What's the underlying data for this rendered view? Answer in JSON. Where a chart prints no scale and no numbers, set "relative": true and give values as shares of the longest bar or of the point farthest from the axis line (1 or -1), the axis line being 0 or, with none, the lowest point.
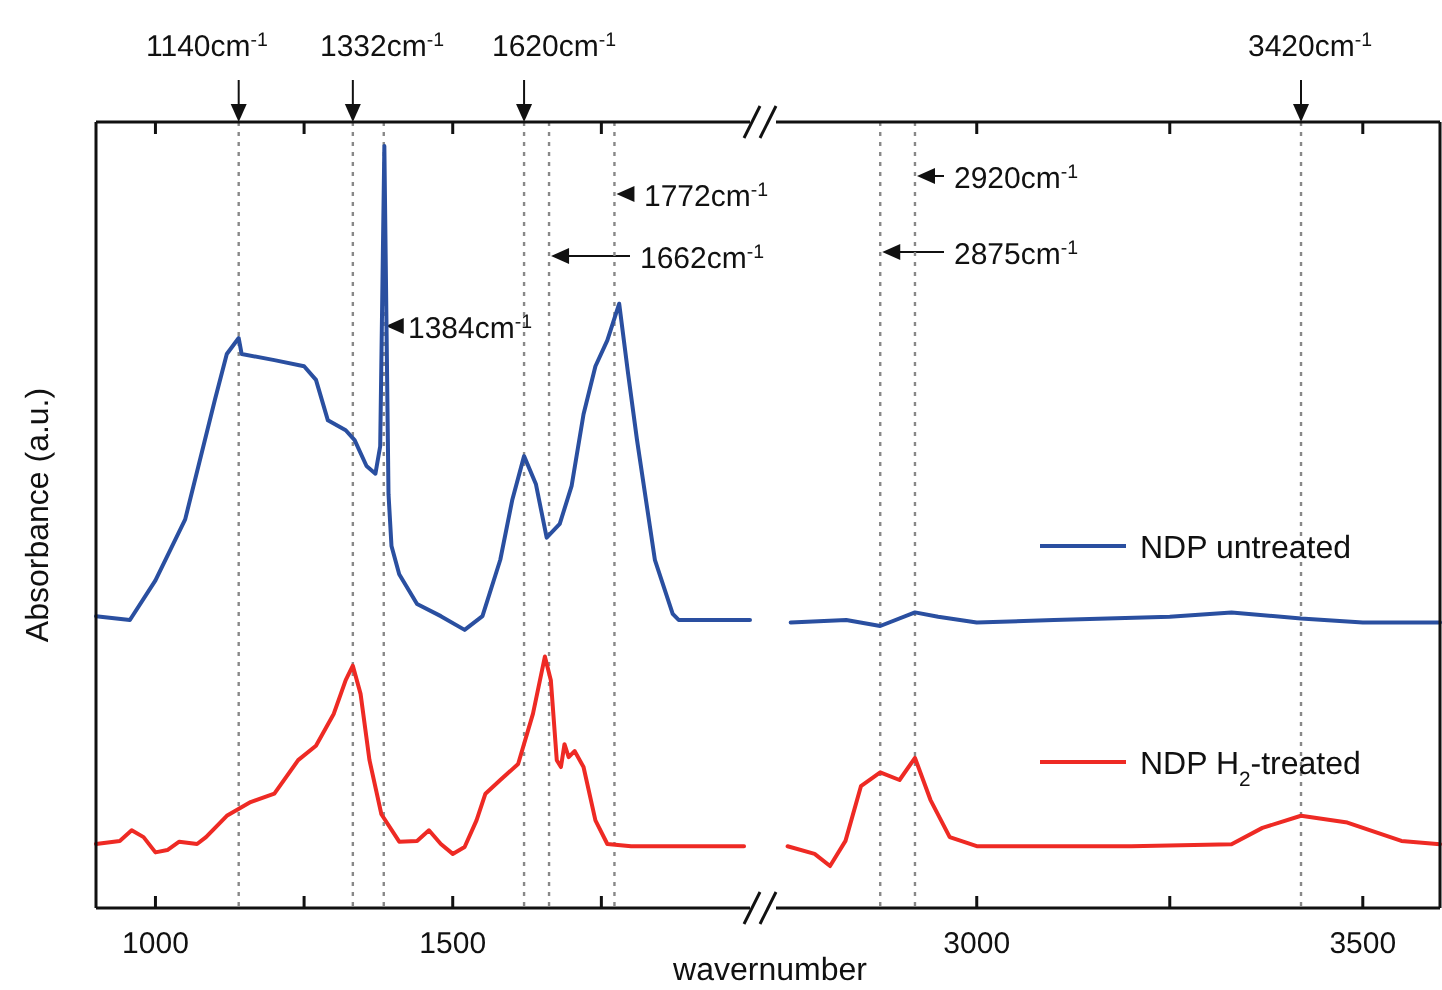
{
  "chart_data": [
    {
      "type": "line",
      "xlabel": "wavernumber",
      "ylabel": "Absorbance (a.u.)",
      "relative": true,
      "xlim": [
        900,
        2000
      ],
      "xticks": [
        1000,
        {
          "value": 1250,
          "label": null
        },
        1500,
        {
          "value": 1750,
          "label": null
        }
      ],
      "grid": false,
      "legend": false,
      "marker": "none",
      "line_style": "solid",
      "series": [
        {
          "color": "#2a4fa0",
          "x": [
            900,
            957,
            1000,
            1050,
            1100,
            1120,
            1140,
            1145,
            1200,
            1250,
            1270,
            1290,
            1320,
            1335,
            1355,
            1370,
            1378,
            1385,
            1392,
            1397,
            1410,
            1440,
            1480,
            1520,
            1550,
            1580,
            1600,
            1620,
            1640,
            1658,
            1680,
            1700,
            1720,
            1740,
            1760,
            1780,
            1795,
            1810,
            1840,
            1870,
            1880,
            2000
          ],
          "values": [
            0.383,
            0.378,
            0.43,
            0.51,
            0.667,
            0.727,
            0.748,
            0.727,
            0.719,
            0.711,
            0.693,
            0.64,
            0.627,
            0.614,
            0.58,
            0.57,
            0.606,
            1.0,
            0.543,
            0.475,
            0.438,
            0.399,
            0.383,
            0.365,
            0.383,
            0.457,
            0.535,
            0.593,
            0.556,
            0.486,
            0.504,
            0.554,
            0.648,
            0.711,
            0.745,
            0.793,
            0.701,
            0.614,
            0.457,
            0.386,
            0.378,
            0.378
          ]
        },
        {
          "color": "#ee2a24",
          "x": [
            900,
            940,
            960,
            980,
            1000,
            1020,
            1040,
            1070,
            1085,
            1120,
            1160,
            1200,
            1240,
            1270,
            1300,
            1320,
            1332,
            1345,
            1360,
            1380,
            1410,
            1440,
            1460,
            1480,
            1500,
            1520,
            1540,
            1555,
            1580,
            1610,
            1635,
            1655,
            1665,
            1675,
            1682,
            1688,
            1695,
            1705,
            1720,
            1740,
            1760,
            1800,
            1990
          ],
          "values": [
            0.084,
            0.088,
            0.102,
            0.093,
            0.073,
            0.076,
            0.087,
            0.084,
            0.093,
            0.121,
            0.139,
            0.15,
            0.194,
            0.213,
            0.255,
            0.299,
            0.318,
            0.281,
            0.194,
            0.123,
            0.087,
            0.088,
            0.102,
            0.084,
            0.071,
            0.08,
            0.115,
            0.15,
            0.168,
            0.189,
            0.255,
            0.33,
            0.299,
            0.194,
            0.185,
            0.215,
            0.198,
            0.206,
            0.185,
            0.115,
            0.084,
            0.081,
            0.081
          ]
        }
      ],
      "ref_lines": [
        {
          "axis": "x",
          "value": 1140,
          "label": "1140cm$^{-1}$",
          "line_style": "dotted",
          "color": "#888888"
        },
        {
          "axis": "x",
          "value": 1332,
          "label": "1332cm$^{-1}$",
          "line_style": "dotted",
          "color": "#888888"
        },
        {
          "axis": "x",
          "value": 1384,
          "label": "1384cm$^{-1}$",
          "line_style": "dotted",
          "color": "#888888"
        },
        {
          "axis": "x",
          "value": 1620,
          "label": "1620cm$^{-1}$",
          "line_style": "dotted",
          "color": "#888888"
        },
        {
          "axis": "x",
          "value": 1662,
          "label": "1662cm$^{-1}$",
          "line_style": "dotted",
          "color": "#888888"
        },
        {
          "axis": "x",
          "value": 1772,
          "label": "1772cm$^{-1}$",
          "line_style": "dotted",
          "color": "#888888"
        }
      ]
    },
    {
      "type": "line",
      "relative": true,
      "xlim": [
        2740,
        3600
      ],
      "xticks": [
        3000,
        {
          "value": 3250,
          "label": null
        },
        3500
      ],
      "grid": false,
      "legend": "right",
      "marker": "none",
      "line_style": "solid",
      "series": [
        {
          "name": "NDP untreated",
          "color": "#2a4fa0",
          "x": [
            2759,
            2831,
            2875,
            2920,
            2950,
            3000,
            3100,
            3250,
            3330,
            3420,
            3500,
            3600
          ],
          "values": [
            0.966,
            0.974,
            0.954,
            1,
            0.985,
            0.966,
            0.974,
            0.985,
            1,
            0.979,
            0.966,
            0.966
          ]
        },
        {
          "name": "NDP H$_{2}$-treated",
          "color": "#ee2a24",
          "x": [
            2755,
            2790,
            2810,
            2830,
            2850,
            2875,
            2900,
            2920,
            2940,
            2965,
            3000,
            3200,
            3330,
            3370,
            3420,
            3480,
            3550,
            3600
          ],
          "values": [
            0.209,
            0.183,
            0.142,
            0.227,
            0.412,
            0.459,
            0.433,
            0.508,
            0.366,
            0.24,
            0.209,
            0.209,
            0.216,
            0.271,
            0.312,
            0.289,
            0.227,
            0.216
          ]
        }
      ],
      "ref_lines": [
        {
          "axis": "x",
          "value": 2875,
          "label": "2875cm$^{-1}$",
          "line_style": "dotted",
          "color": "#888888"
        },
        {
          "axis": "x",
          "value": 2920,
          "label": "2920cm$^{-1}$",
          "line_style": "dotted",
          "color": "#888888"
        },
        {
          "axis": "x",
          "value": 3420,
          "label": "3420cm$^{-1}$",
          "line_style": "dotted",
          "color": "#888888"
        }
      ]
    }
  ]
}
